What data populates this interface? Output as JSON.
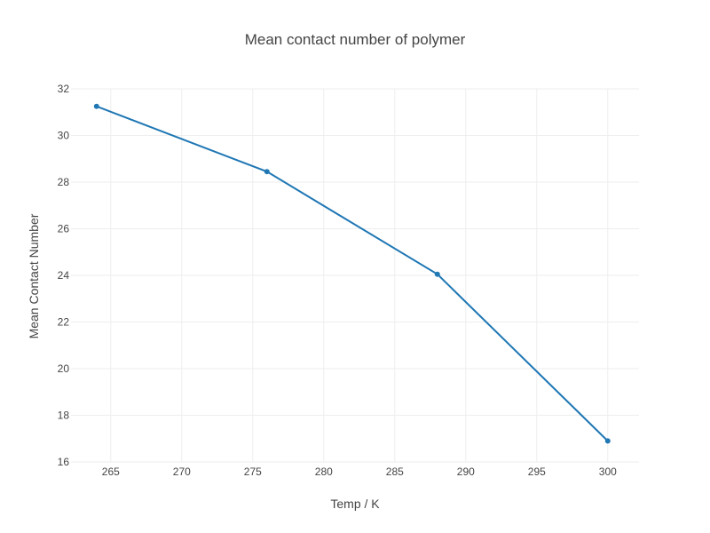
{
  "chart_data": {
    "type": "line",
    "title": "Mean contact number of polymer",
    "xlabel": "Temp / K",
    "ylabel": "Mean Contact Number",
    "xlim": [
      262.2,
      302.2
    ],
    "ylim": [
      16,
      32
    ],
    "xticks": [
      265,
      270,
      275,
      280,
      285,
      290,
      295,
      300
    ],
    "yticks": [
      16,
      18,
      20,
      22,
      24,
      26,
      28,
      30,
      32
    ],
    "grid": true,
    "legend": "none",
    "color": "#1f77b4",
    "series": [
      {
        "x": [
          264,
          276,
          288,
          300
        ],
        "y": [
          31.25,
          28.45,
          24.05,
          16.9
        ]
      }
    ]
  }
}
